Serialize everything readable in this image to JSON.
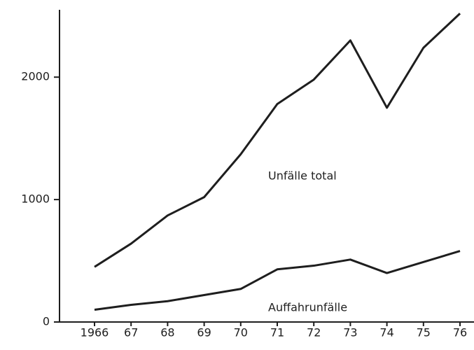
{
  "chart_data": {
    "type": "line",
    "categories": [
      "1966",
      "67",
      "68",
      "69",
      "70",
      "71",
      "72",
      "73",
      "74",
      "75",
      "76"
    ],
    "series": [
      {
        "name": "Unfälle total",
        "color": "#1e1e1e",
        "values": [
          450,
          640,
          870,
          1020,
          1370,
          1780,
          1980,
          2300,
          1750,
          2240,
          2520
        ]
      },
      {
        "name": "Auffahrunfälle",
        "color": "#1e1e1e",
        "values": [
          100,
          140,
          170,
          220,
          270,
          430,
          460,
          510,
          400,
          490,
          580
        ]
      }
    ],
    "ylim": [
      0,
      2550
    ],
    "yticks": [
      0,
      1000,
      2000
    ],
    "grid": false
  }
}
